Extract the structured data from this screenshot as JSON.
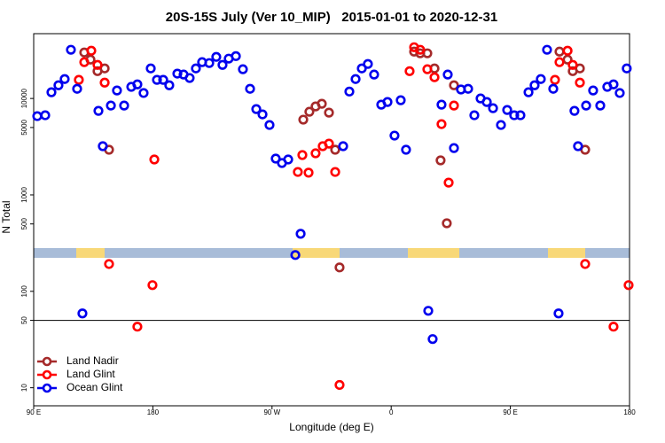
{
  "chart_data": {
    "type": "scatter",
    "title": "20S-15S July (Ver 10_MIP)   2015-01-01 to 2020-12-31",
    "xlabel": "Longitude (deg E)",
    "ylabel": "N Total",
    "xlim": [
      90,
      540
    ],
    "xticks": [
      {
        "value": 90,
        "label": "90 E"
      },
      180,
      {
        "value": 270,
        "label": "90 W"
      },
      {
        "value": 360,
        "label": "0"
      },
      {
        "value": 450,
        "label": "90 E"
      },
      {
        "value": 540,
        "label": "180"
      }
    ],
    "ylim": [
      6.5,
      47000
    ],
    "log_y": true,
    "yticks": [
      10,
      50,
      100,
      500,
      1000,
      5000,
      10000
    ],
    "reference_line": 50,
    "legend": "bottom-left",
    "series": [
      {
        "name": "Land Nadir",
        "color": "#a52a2a",
        "x": [
          128.2,
          132.9,
          138.2,
          143.6,
          146.9,
          293.6,
          298.2,
          302.9,
          307.6,
          313,
          317.7,
          321,
          377.3,
          381.9,
          387.3,
          392.7,
          397.3,
          402,
          407.4,
          487.1,
          493.2,
          497.1,
          502.5,
          506.5
        ],
        "values": [
          30000,
          25300,
          19200,
          20500,
          2940,
          6030,
          7280,
          8270,
          8810,
          7130,
          2940,
          177,
          30600,
          29400,
          29400,
          20500,
          2280,
          508,
          13700,
          30600,
          25300,
          19200,
          20500,
          2940
        ]
      },
      {
        "name": "Land Glint",
        "color": "#ff0000",
        "x": [
          124.1,
          128.2,
          133.5,
          138.2,
          143.6,
          146.9,
          168.3,
          179.7,
          181.1,
          289.5,
          292.9,
          297.6,
          302.9,
          308.3,
          313,
          317.7,
          321,
          373.9,
          377.3,
          381.9,
          387.3,
          392.7,
          398,
          403.4,
          407.4,
          483.7,
          487.1,
          493.2,
          497.1,
          502.5,
          506.5,
          527.9,
          539.3
        ],
        "values": [
          15600,
          23800,
          31300,
          22300,
          14600,
          192,
          43,
          116,
          2330,
          1730,
          2590,
          1700,
          2700,
          3200,
          3400,
          1730,
          10.7,
          19200,
          34000,
          32000,
          20100,
          16600,
          5420,
          1340,
          8450,
          15600,
          23800,
          31300,
          22300,
          14600,
          192,
          43,
          116
        ]
      },
      {
        "name": "Ocean Glint",
        "color": "#0000ee",
        "x": [
          92.7,
          98.7,
          103.4,
          108.7,
          113.4,
          118.1,
          122.8,
          126.8,
          138.9,
          142.2,
          148.3,
          152.9,
          158.3,
          163.7,
          168.3,
          173,
          178.4,
          183.1,
          187.8,
          192.4,
          198.5,
          203.2,
          207.8,
          212.5,
          217.2,
          222.6,
          227.9,
          232.6,
          237.3,
          242.7,
          248,
          253.4,
          258.1,
          262.8,
          268.1,
          272.8,
          277.5,
          282.2,
          287.6,
          291.6,
          323.7,
          328.4,
          333.1,
          337.8,
          342.4,
          347.1,
          352.5,
          357.2,
          362.5,
          367.2,
          371.2,
          388,
          391.3,
          398,
          402.7,
          407.4,
          412.7,
          418.1,
          422.8,
          427.5,
          432.2,
          436.9,
          442.9,
          447.6,
          452.9,
          457.6,
          463.7,
          468.3,
          473,
          477.7,
          482.4,
          486.4,
          498.4,
          501.1,
          507.2,
          512.5,
          517.9,
          523.2,
          527.9,
          532.6,
          537.9
        ],
        "values": [
          6560,
          6700,
          11600,
          13700,
          15900,
          32000,
          12600,
          59,
          7440,
          3200,
          8450,
          12100,
          8450,
          13200,
          14000,
          11400,
          20500,
          15600,
          15600,
          13700,
          18100,
          17700,
          16300,
          20500,
          23800,
          23300,
          27000,
          22300,
          25900,
          27500,
          20100,
          12600,
          7760,
          6840,
          5310,
          2380,
          2140,
          2330,
          238,
          395,
          3200,
          11800,
          15900,
          20500,
          22800,
          17700,
          8630,
          9190,
          4120,
          9590,
          2940,
          62.8,
          32,
          8630,
          17700,
          3060,
          12400,
          12600,
          6700,
          10000,
          9190,
          7930,
          5310,
          7600,
          6700,
          6700,
          11600,
          13700,
          15900,
          32000,
          12600,
          59,
          7440,
          3200,
          8450,
          12100,
          8450,
          13200,
          14000,
          11400,
          20500
        ]
      }
    ]
  }
}
